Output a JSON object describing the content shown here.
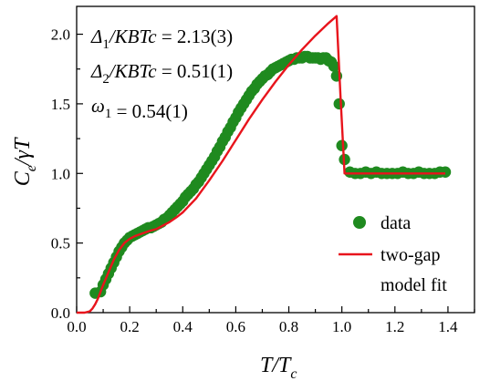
{
  "chart_data": {
    "type": "scatter",
    "xlabel": {
      "main": "T/T",
      "sub": "c"
    },
    "ylabel": {
      "main": "C",
      "sub": "e",
      "tail": "/γT"
    },
    "xlim": [
      0.0,
      1.5
    ],
    "ylim": [
      0.0,
      2.2
    ],
    "x_ticks": [
      0.0,
      0.2,
      0.4,
      0.6,
      0.8,
      1.0,
      1.2,
      1.4
    ],
    "x_tick_labels": [
      "0.0",
      "0.2",
      "0.4",
      "0.6",
      "0.8",
      "1.0",
      "1.2",
      "1.4"
    ],
    "y_ticks": [
      0.0,
      0.5,
      1.0,
      1.5,
      2.0
    ],
    "y_tick_labels": [
      "0.0",
      "0.5",
      "1.0",
      "1.5",
      "2.0"
    ],
    "grid": false,
    "legend_placement": "bottom-right",
    "colors": {
      "data": "#1f8a1f",
      "fit": "#e8141c",
      "axis": "#000000"
    },
    "annotations": [
      {
        "sym": "Δ",
        "sub": "1",
        "rest": "/KBTc",
        "value": " = 2.13(3)"
      },
      {
        "sym": "Δ",
        "sub": "2",
        "rest": "/KBTc",
        "value": " = 0.51(1)"
      },
      {
        "sym": "ω",
        "sub": "1",
        "rest": "",
        "value": " = 0.54(1)"
      }
    ],
    "series": [
      {
        "name": "data",
        "kind": "scatter",
        "x": [
          0.07,
          0.09,
          0.1,
          0.11,
          0.12,
          0.13,
          0.14,
          0.15,
          0.16,
          0.17,
          0.18,
          0.19,
          0.2,
          0.21,
          0.22,
          0.23,
          0.24,
          0.25,
          0.26,
          0.27,
          0.28,
          0.29,
          0.3,
          0.31,
          0.32,
          0.33,
          0.34,
          0.35,
          0.36,
          0.37,
          0.38,
          0.39,
          0.4,
          0.41,
          0.42,
          0.43,
          0.44,
          0.45,
          0.46,
          0.47,
          0.48,
          0.49,
          0.5,
          0.51,
          0.52,
          0.53,
          0.54,
          0.55,
          0.56,
          0.57,
          0.58,
          0.59,
          0.6,
          0.61,
          0.62,
          0.63,
          0.64,
          0.65,
          0.66,
          0.67,
          0.68,
          0.69,
          0.7,
          0.71,
          0.72,
          0.73,
          0.74,
          0.75,
          0.76,
          0.77,
          0.78,
          0.79,
          0.8,
          0.81,
          0.82,
          0.83,
          0.84,
          0.85,
          0.86,
          0.87,
          0.88,
          0.89,
          0.9,
          0.91,
          0.92,
          0.93,
          0.94,
          0.95,
          0.96,
          0.97,
          0.98,
          0.99,
          1.0,
          1.01,
          1.03,
          1.05,
          1.07,
          1.09,
          1.11,
          1.13,
          1.15,
          1.17,
          1.19,
          1.21,
          1.23,
          1.25,
          1.27,
          1.29,
          1.31,
          1.33,
          1.35,
          1.37,
          1.39
        ],
        "y": [
          0.14,
          0.15,
          0.2,
          0.24,
          0.28,
          0.32,
          0.36,
          0.4,
          0.44,
          0.47,
          0.5,
          0.52,
          0.54,
          0.55,
          0.56,
          0.57,
          0.58,
          0.59,
          0.6,
          0.61,
          0.61,
          0.62,
          0.63,
          0.64,
          0.65,
          0.67,
          0.68,
          0.7,
          0.72,
          0.74,
          0.76,
          0.78,
          0.8,
          0.83,
          0.85,
          0.87,
          0.89,
          0.92,
          0.94,
          0.97,
          1.0,
          1.03,
          1.06,
          1.09,
          1.12,
          1.16,
          1.19,
          1.23,
          1.26,
          1.3,
          1.33,
          1.37,
          1.4,
          1.44,
          1.47,
          1.5,
          1.53,
          1.56,
          1.59,
          1.61,
          1.64,
          1.66,
          1.68,
          1.7,
          1.71,
          1.73,
          1.75,
          1.76,
          1.77,
          1.78,
          1.79,
          1.8,
          1.81,
          1.82,
          1.82,
          1.83,
          1.83,
          1.83,
          1.84,
          1.84,
          1.83,
          1.83,
          1.83,
          1.83,
          1.82,
          1.83,
          1.83,
          1.81,
          1.8,
          1.77,
          1.7,
          1.5,
          1.2,
          1.1,
          1.01,
          1.0,
          1.0,
          1.01,
          1.0,
          1.01,
          1.0,
          1.0,
          1.0,
          1.0,
          1.01,
          1.0,
          1.0,
          1.01,
          1.0,
          1.0,
          1.0,
          1.01,
          1.01
        ]
      },
      {
        "name": "two-gap model fit",
        "legend_lines": [
          "two-gap",
          "model fit"
        ],
        "kind": "line",
        "x": [
          0.0,
          0.03,
          0.05,
          0.06,
          0.07,
          0.08,
          0.09,
          0.1,
          0.12,
          0.14,
          0.16,
          0.18,
          0.2,
          0.22,
          0.25,
          0.28,
          0.3,
          0.32,
          0.35,
          0.38,
          0.4,
          0.42,
          0.45,
          0.5,
          0.55,
          0.6,
          0.65,
          0.7,
          0.75,
          0.8,
          0.85,
          0.9,
          0.95,
          0.98,
          0.995,
          1.01,
          1.39
        ],
        "y": [
          0.0,
          0.0,
          0.01,
          0.03,
          0.06,
          0.1,
          0.15,
          0.2,
          0.29,
          0.38,
          0.45,
          0.5,
          0.53,
          0.55,
          0.57,
          0.59,
          0.6,
          0.62,
          0.65,
          0.69,
          0.72,
          0.76,
          0.82,
          0.95,
          1.09,
          1.24,
          1.39,
          1.53,
          1.66,
          1.78,
          1.89,
          1.99,
          2.08,
          2.13,
          1.55,
          1.0,
          1.0
        ]
      }
    ]
  }
}
